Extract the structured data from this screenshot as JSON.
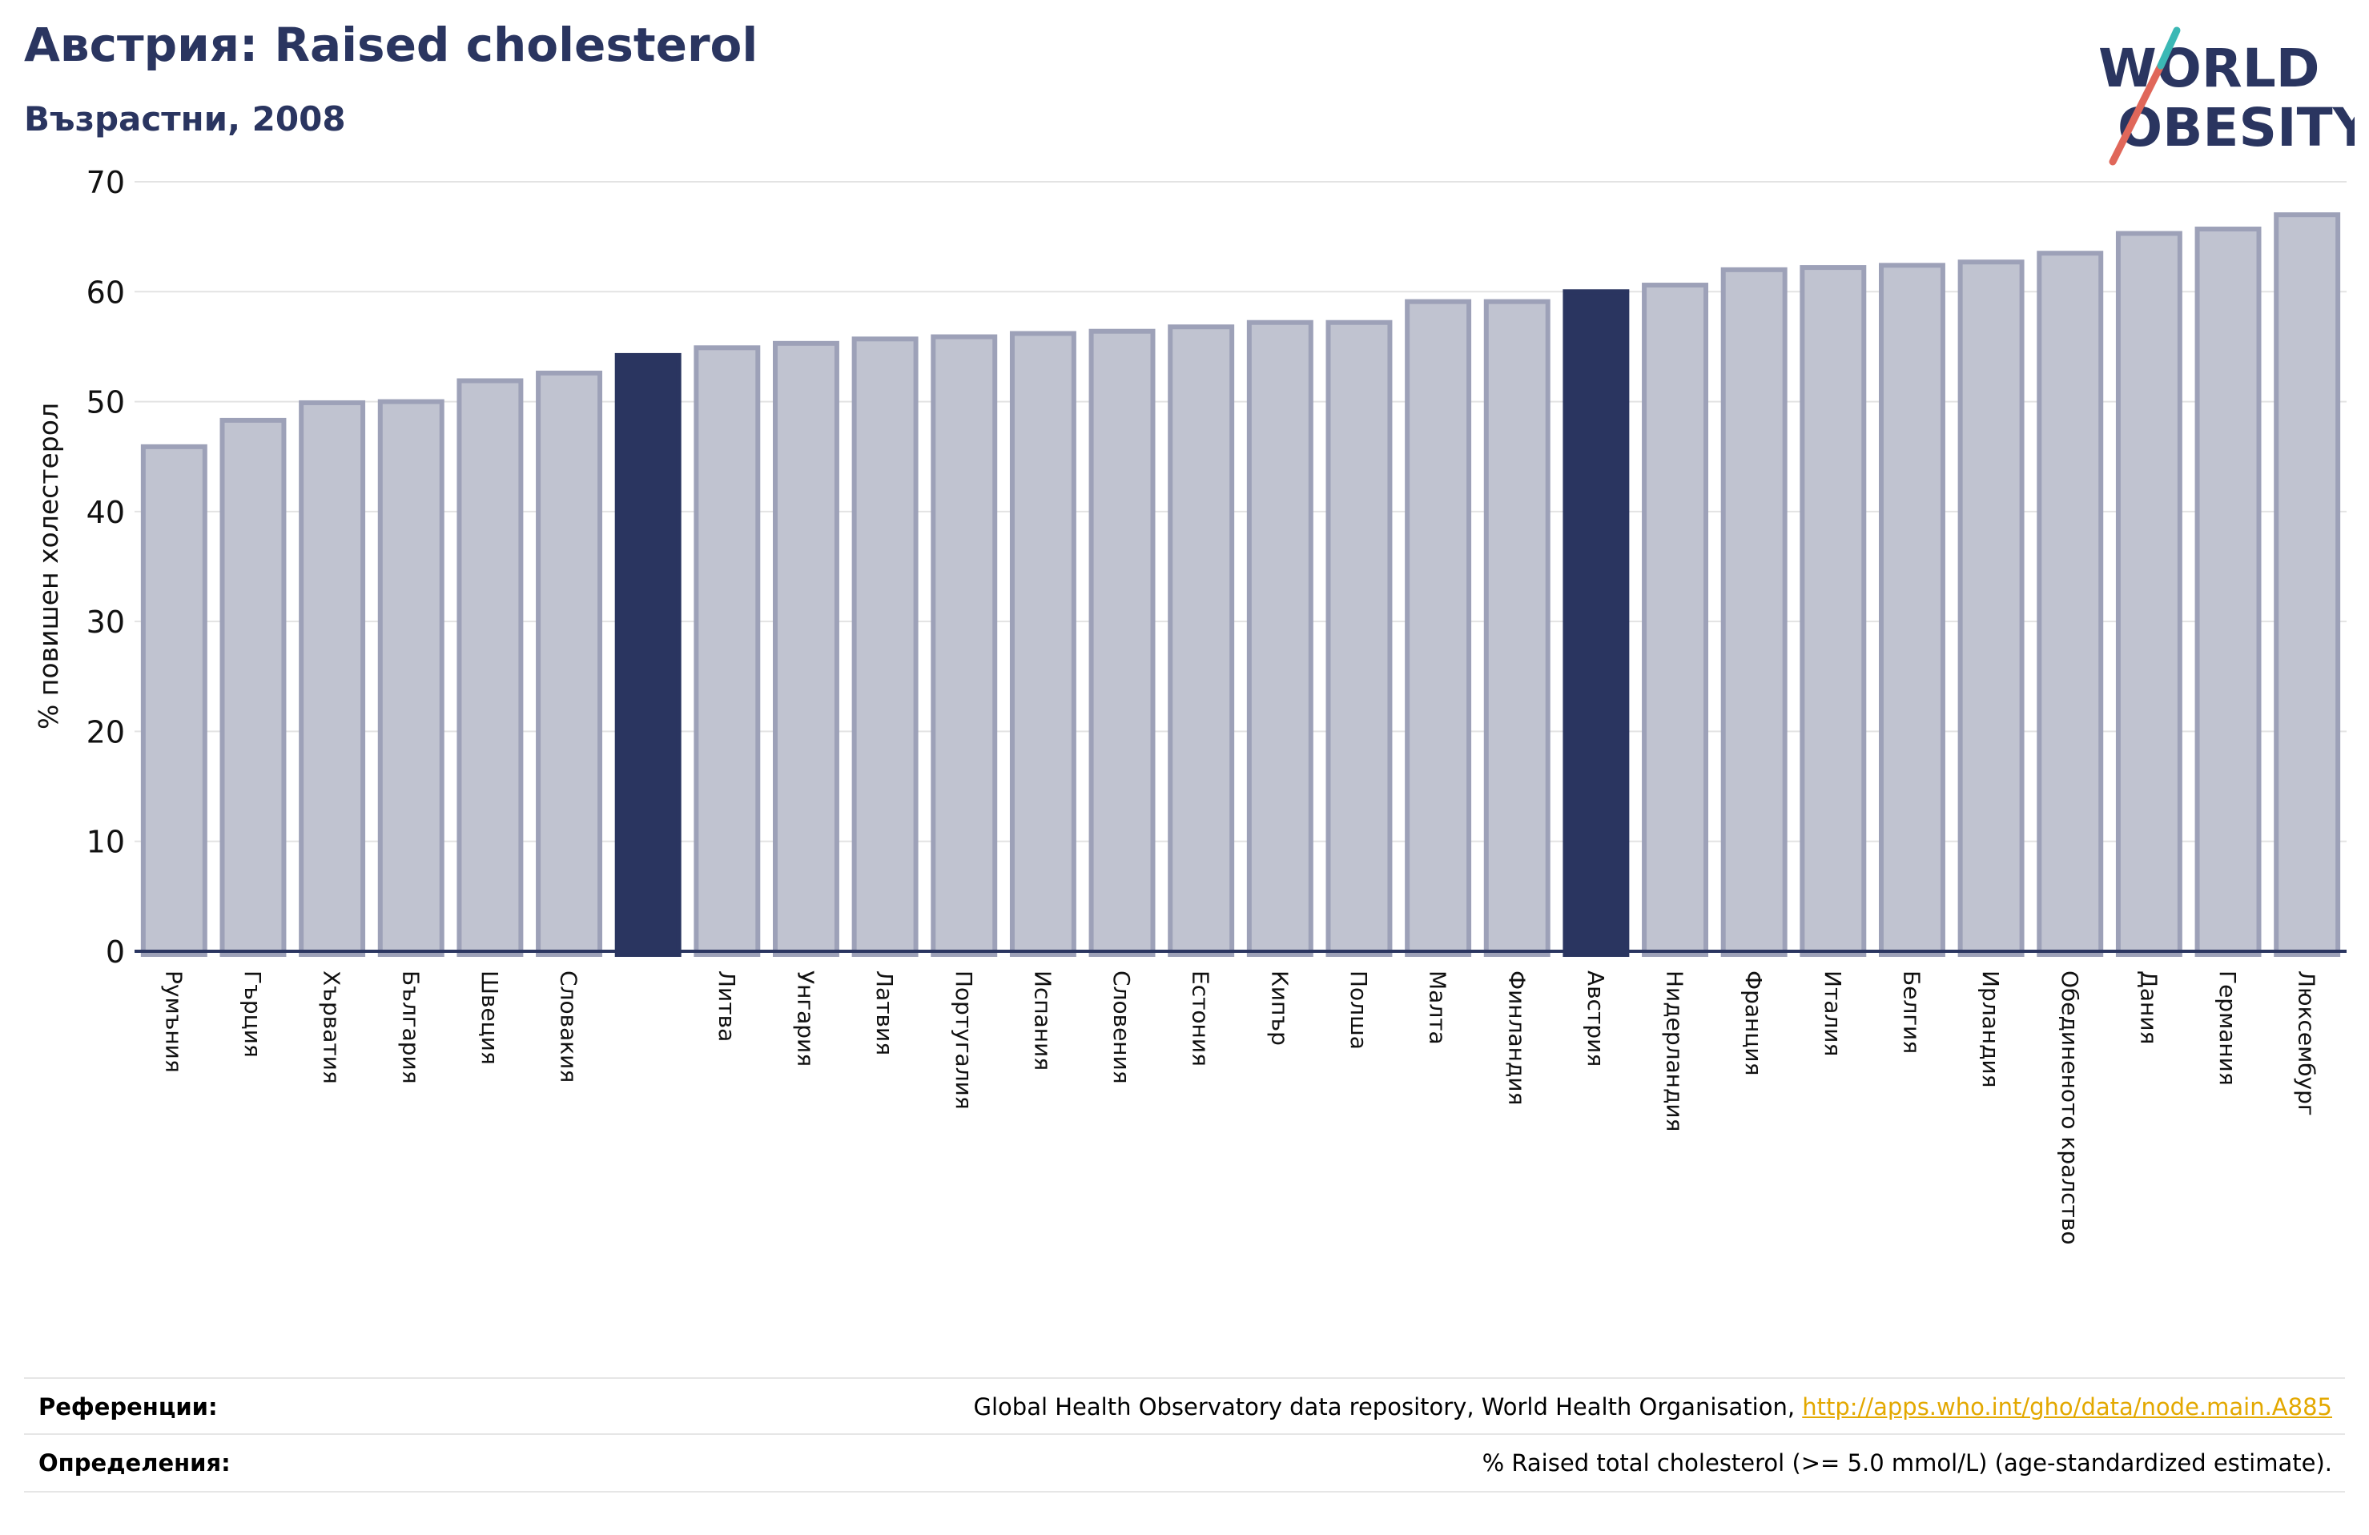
{
  "header": {
    "title": "Австрия: Raised cholesterol",
    "subtitle": "Възрастни, 2008"
  },
  "logo": {
    "line1": "WORLD",
    "line2": "OBESITY",
    "colors": {
      "text": "#2a3560",
      "slash_red": "#e0675a",
      "slash_teal": "#3bb8b5"
    }
  },
  "chart_data": {
    "type": "bar",
    "title": "Австрия: Raised cholesterol",
    "subtitle": "Възрастни, 2008",
    "ylabel": "% повишен холестерол",
    "ylim": [
      0,
      70
    ],
    "yticks": [
      0,
      10,
      20,
      30,
      40,
      50,
      60,
      70
    ],
    "grid": true,
    "categories": [
      "Румъния",
      "Гърция",
      "Хърватия",
      "България",
      "Швеция",
      "Словакия",
      "",
      "Литва",
      "Унгария",
      "Латвия",
      "Португалия",
      "Испания",
      "Словения",
      "Естония",
      "Кипър",
      "Полша",
      "Малта",
      "Финландия",
      "Австрия",
      "Нидерландия",
      "Франция",
      "Италия",
      "Белгия",
      "Ирландия",
      "Обединеното кралство",
      "Дания",
      "Германия",
      "Люксембург"
    ],
    "values": [
      45.9,
      48.3,
      49.9,
      50.0,
      51.9,
      52.6,
      54.2,
      54.9,
      55.3,
      55.7,
      55.9,
      56.2,
      56.4,
      56.8,
      57.2,
      57.2,
      59.1,
      59.1,
      60.0,
      60.6,
      62.0,
      62.2,
      62.4,
      62.7,
      63.5,
      65.3,
      65.7,
      67.0
    ],
    "highlighted": [
      6,
      18
    ],
    "colors": {
      "bar": "#c0c3d0",
      "bar_edge": "#9da1b8",
      "highlight": "#2a3560",
      "axis": "#2a3560",
      "grid": "#e3e3e3"
    }
  },
  "footer": {
    "references_label": "Референции:",
    "references_text": "Global Health Observatory data repository, World Health Organisation, ",
    "references_link": "http://apps.who.int/gho/data/node.main.A885",
    "definitions_label": "Определения:",
    "definitions_text": "% Raised total cholesterol (>= 5.0 mmol/L) (age-standardized estimate)."
  }
}
